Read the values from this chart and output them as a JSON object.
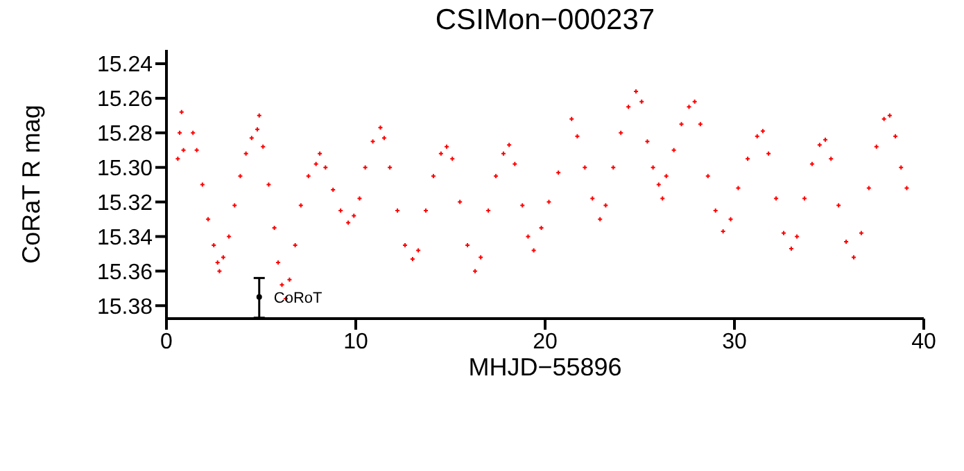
{
  "chart_data": {
    "type": "scatter",
    "title": "CSIMon−000237",
    "xlabel": "MHJD−55896",
    "ylabel": "CoRaT R mag",
    "xlim": [
      0,
      40
    ],
    "xticks": [
      0,
      10,
      20,
      30,
      40
    ],
    "ylim": [
      15.3875,
      15.232
    ],
    "yticks": [
      15.24,
      15.26,
      15.28,
      {
        "value": 15.3,
        "label": "15.30"
      },
      15.32,
      15.34,
      15.36,
      15.38
    ],
    "marker": "cross",
    "series": [
      {
        "color": "#ff0000",
        "x": [
          0.6,
          0.7,
          0.8,
          0.9,
          1.4,
          1.6,
          1.9,
          2.2,
          2.5,
          2.7,
          2.8,
          3.0,
          3.3,
          3.6,
          3.9,
          4.2,
          4.5,
          4.8,
          4.9,
          5.1,
          5.4,
          5.7,
          5.9,
          6.1,
          6.3,
          6.5,
          6.8,
          7.1,
          7.5,
          7.9,
          8.1,
          8.4,
          8.8,
          9.2,
          9.6,
          9.9,
          10.2,
          10.5,
          10.9,
          11.3,
          11.5,
          11.8,
          12.2,
          12.6,
          13.0,
          13.3,
          13.7,
          14.1,
          14.5,
          14.8,
          15.1,
          15.5,
          15.9,
          16.3,
          16.6,
          17.0,
          17.4,
          17.8,
          18.1,
          18.4,
          18.8,
          19.1,
          19.4,
          19.8,
          20.2,
          20.7,
          21.4,
          21.7,
          22.1,
          22.5,
          22.9,
          23.2,
          23.6,
          24.0,
          24.4,
          24.8,
          25.1,
          25.4,
          25.7,
          26.0,
          26.2,
          26.4,
          26.8,
          27.2,
          27.6,
          27.9,
          28.2,
          28.6,
          29.0,
          29.4,
          29.8,
          30.2,
          30.7,
          31.2,
          31.5,
          31.8,
          32.2,
          32.6,
          33.0,
          33.3,
          33.7,
          34.1,
          34.5,
          34.8,
          35.1,
          35.5,
          35.9,
          36.3,
          36.7,
          37.1,
          37.5,
          37.9,
          38.2,
          38.5,
          38.8,
          39.1
        ],
        "values": [
          15.295,
          15.28,
          15.268,
          15.29,
          15.28,
          15.29,
          15.31,
          15.33,
          15.345,
          15.355,
          15.36,
          15.352,
          15.34,
          15.322,
          15.305,
          15.292,
          15.283,
          15.278,
          15.27,
          15.288,
          15.31,
          15.335,
          15.355,
          15.368,
          15.376,
          15.365,
          15.345,
          15.322,
          15.305,
          15.298,
          15.292,
          15.3,
          15.313,
          15.325,
          15.332,
          15.328,
          15.318,
          15.3,
          15.285,
          15.277,
          15.283,
          15.3,
          15.325,
          15.345,
          15.353,
          15.348,
          15.325,
          15.305,
          15.292,
          15.288,
          15.295,
          15.32,
          15.345,
          15.36,
          15.352,
          15.325,
          15.305,
          15.292,
          15.287,
          15.298,
          15.322,
          15.34,
          15.348,
          15.335,
          15.32,
          15.303,
          15.272,
          15.282,
          15.3,
          15.318,
          15.33,
          15.322,
          15.3,
          15.28,
          15.265,
          15.256,
          15.262,
          15.285,
          15.3,
          15.31,
          15.318,
          15.305,
          15.29,
          15.275,
          15.265,
          15.262,
          15.275,
          15.305,
          15.325,
          15.337,
          15.33,
          15.312,
          15.295,
          15.282,
          15.279,
          15.292,
          15.318,
          15.338,
          15.347,
          15.34,
          15.318,
          15.298,
          15.287,
          15.284,
          15.295,
          15.322,
          15.343,
          15.352,
          15.338,
          15.312,
          15.288,
          15.272,
          15.27,
          15.282,
          15.3,
          15.312
        ]
      },
      {
        "name": "CoRoT",
        "color": "#000000",
        "marker": "circle",
        "x": [
          4.9
        ],
        "values": [
          15.375
        ],
        "errors": [
          [
            15.364,
            15.387
          ]
        ]
      }
    ]
  }
}
